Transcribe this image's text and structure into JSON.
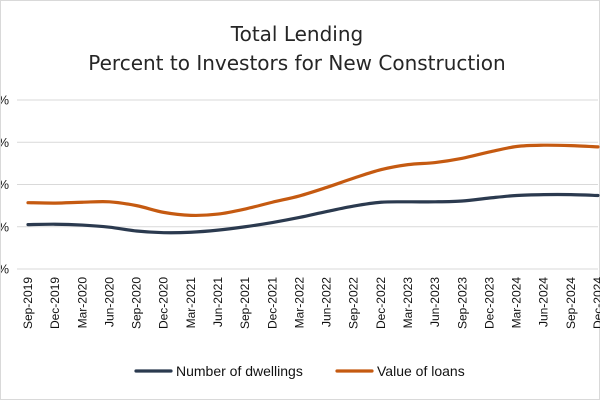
{
  "chart_data": {
    "type": "line",
    "title": [
      "Total Lending",
      "Percent to Investors for New Construction"
    ],
    "xlabel": "",
    "ylabel": "",
    "categories": [
      "Sep-2019",
      "Dec-2019",
      "Mar-2020",
      "Jun-2020",
      "Sep-2020",
      "Dec-2020",
      "Mar-2021",
      "Jun-2021",
      "Sep-2021",
      "Dec-2021",
      "Mar-2022",
      "Jun-2022",
      "Sep-2022",
      "Dec-2022",
      "Mar-2023",
      "Jun-2023",
      "Sep-2023",
      "Dec-2023",
      "Mar-2024",
      "Jun-2024",
      "Sep-2024",
      "Dec-2024"
    ],
    "ytick_labels": [
      "%",
      "%",
      "%",
      "%",
      "%"
    ],
    "ylim": [
      0,
      4
    ],
    "grid": true,
    "legend_position": "bottom",
    "series": [
      {
        "name": "Number of dwellings",
        "color": "#2b3a4f",
        "values": [
          1.05,
          1.06,
          1.04,
          0.99,
          0.9,
          0.86,
          0.87,
          0.92,
          1.0,
          1.1,
          1.22,
          1.36,
          1.49,
          1.58,
          1.59,
          1.59,
          1.61,
          1.68,
          1.74,
          1.76,
          1.76,
          1.74
        ]
      },
      {
        "name": "Value of loans",
        "color": "#c55a11",
        "values": [
          1.57,
          1.56,
          1.58,
          1.59,
          1.5,
          1.34,
          1.27,
          1.3,
          1.42,
          1.58,
          1.73,
          1.93,
          2.15,
          2.35,
          2.47,
          2.52,
          2.62,
          2.77,
          2.9,
          2.93,
          2.92,
          2.89
        ]
      }
    ]
  }
}
